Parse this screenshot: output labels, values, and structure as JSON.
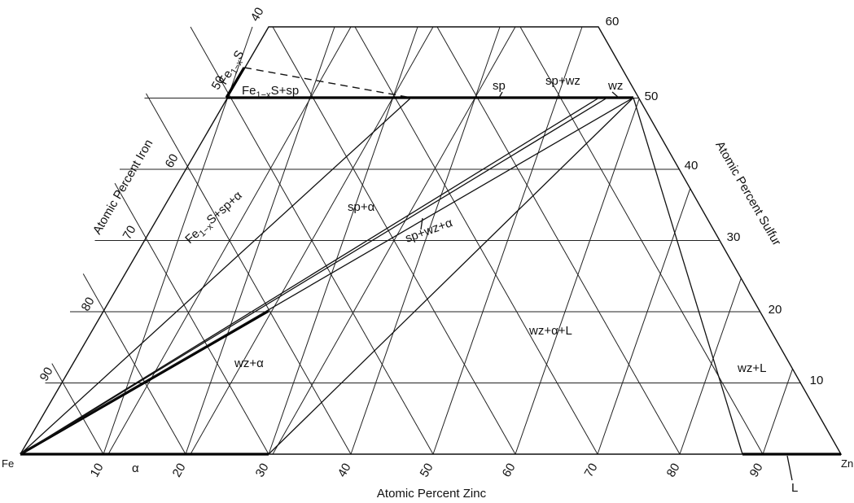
{
  "diagram": {
    "vertices": {
      "left": "Fe",
      "right": "Zn",
      "top_left_phase_prefix": "Fe",
      "top_left_phase_sub": "1−x",
      "top_left_phase_suffix": "S"
    },
    "axes": {
      "bottom": "Atomic Percent Zinc",
      "left": "Atomic Percent Iron",
      "right": "Atomic Percent Sulfur"
    },
    "ticks": {
      "bottom": [
        "10",
        "20",
        "30",
        "40",
        "50",
        "60",
        "70",
        "80",
        "90"
      ],
      "left": [
        "40",
        "50",
        "60",
        "70",
        "80",
        "90"
      ],
      "right": [
        "60",
        "50",
        "40",
        "30",
        "20",
        "10"
      ]
    },
    "phase_fields": {
      "fe1xs_sp": {
        "prefix": "Fe",
        "sub": "1−x",
        "suffix": "S+sp"
      },
      "fe1xs_sp_alpha": {
        "prefix": "Fe",
        "sub": "1−x",
        "suffix": "S+sp+α"
      },
      "sp": "sp",
      "sp_wz": "sp+wz",
      "wz": "wz",
      "sp_alpha": "sp+α",
      "sp_wz_alpha": "sp+wz+α",
      "wz_alpha": "wz+α",
      "wz_alpha_L": "wz+α+L",
      "wz_L": "wz+L",
      "alpha": "α",
      "L": "L"
    }
  }
}
